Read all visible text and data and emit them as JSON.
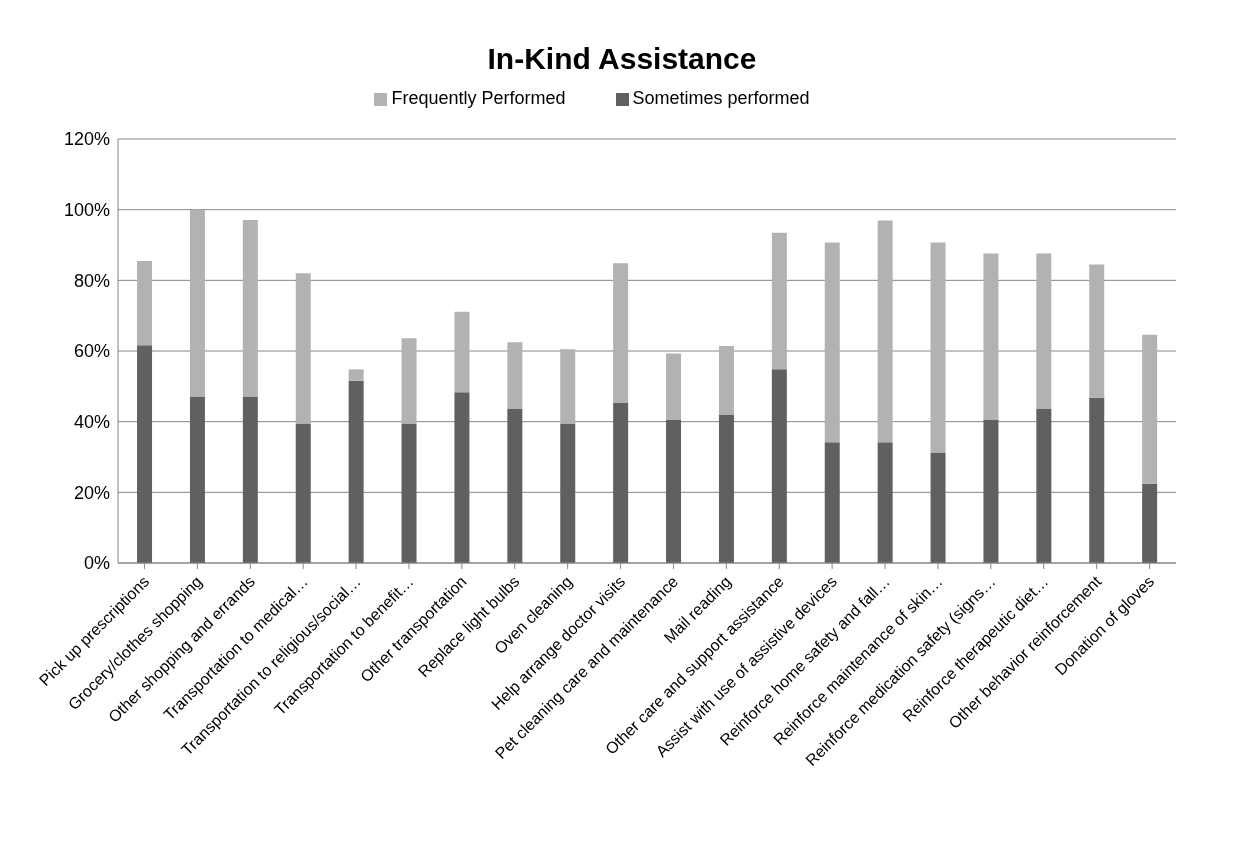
{
  "chart_data": {
    "type": "bar",
    "title": "In-Kind Assistance",
    "stacked": true,
    "grid": "y",
    "legend": "top",
    "categories": [
      "Pick up prescriptions",
      "Grocery/clothes shopping",
      "Other shopping and errands",
      "Transportation to medical…",
      "Transportation to religious/social…",
      "Transportation to benefit…",
      "Other transportation",
      "Replace light bulbs",
      "Oven cleaning",
      "Help arrange doctor visits",
      "Pet cleaning care and maintenance",
      "Mail reading",
      "Other care and support assistance",
      "Assist with use of assistive devices",
      "Reinforce home safety and fall…",
      "Reinforce maintenance of skin…",
      "Reinforce medication safety (signs…",
      "Reinforce therapeutic diet…",
      "Other behavior reinforcement",
      "Donation of gloves"
    ],
    "series": [
      {
        "name": "Sometimes performed",
        "color": "#606060",
        "values": [
          61.6,
          47.1,
          47.1,
          39.5,
          51.6,
          39.5,
          48.3,
          43.6,
          39.5,
          45.3,
          40.5,
          41.9,
          54.8,
          34.2,
          34.2,
          31.1,
          40.5,
          43.6,
          46.8,
          22.4
        ]
      },
      {
        "name": "Frequently Performed",
        "color": "#b2b2b2",
        "values": [
          23.9,
          52.9,
          50,
          42.5,
          3.2,
          24.1,
          22.8,
          18.9,
          21,
          39.5,
          18.8,
          19.5,
          38.7,
          56.5,
          62.7,
          59.6,
          47.1,
          44,
          37.7,
          42.2
        ]
      }
    ],
    "ylim": [
      0,
      120
    ],
    "yticks": [
      {
        "value": 0,
        "label": "0%"
      },
      {
        "value": 20,
        "label": "20%"
      },
      {
        "value": 40,
        "label": "40%"
      },
      {
        "value": 60,
        "label": "60%"
      },
      {
        "value": 80,
        "label": "80%"
      },
      {
        "value": 100,
        "label": "100%"
      },
      {
        "value": 120,
        "label": "120%"
      }
    ]
  }
}
